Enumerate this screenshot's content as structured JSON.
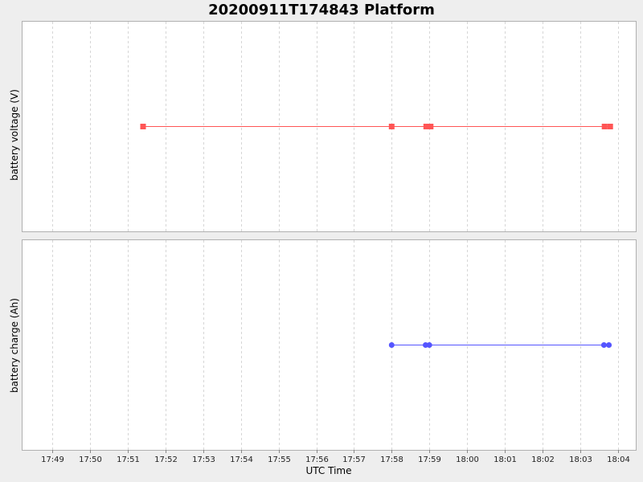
{
  "chart_data": {
    "type": "line",
    "title": "20200911T174843 Platform",
    "xlabel": "UTC Time",
    "x_ticks": [
      "17:49",
      "17:50",
      "17:51",
      "17:52",
      "17:53",
      "17:54",
      "17:55",
      "17:56",
      "17:57",
      "17:58",
      "17:59",
      "18:00",
      "18:01",
      "18:02",
      "18:03",
      "18:04"
    ],
    "xlim": [
      "17:48:12",
      "18:04:30"
    ],
    "grid": true,
    "panels": [
      {
        "id": "voltage",
        "ylabel": "battery voltage (V)",
        "marker": "square",
        "color": "#ff5555",
        "x": [
          "17:51:24",
          "17:58:00",
          "17:58:55",
          "17:59:02",
          "18:03:39",
          "18:03:48"
        ],
        "y": [
          1,
          1,
          1,
          1,
          1,
          1
        ]
      },
      {
        "id": "charge",
        "ylabel": "battery charge (Ah)",
        "marker": "circle",
        "color": "#5555ff",
        "x": [
          "17:58:00",
          "17:58:54",
          "17:59:00",
          "18:03:38",
          "18:03:46"
        ],
        "y": [
          1,
          1,
          1,
          1,
          1
        ]
      }
    ]
  }
}
